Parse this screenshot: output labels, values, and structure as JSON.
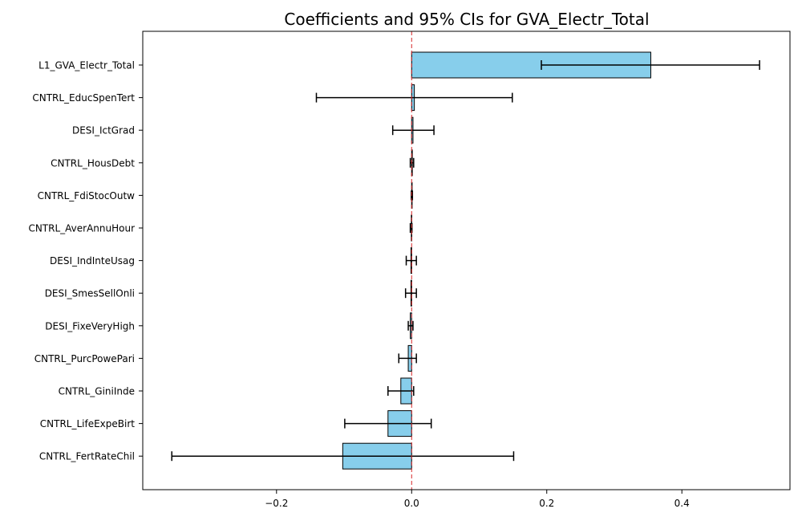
{
  "chart_data": {
    "type": "bar",
    "orientation": "horizontal",
    "title": "Coefficients and 95% CIs for GVA_Electr_Total",
    "xlabel": "",
    "ylabel": "",
    "xlim": [
      -0.398,
      0.56
    ],
    "xticks": [
      -0.2,
      0.0,
      0.2,
      0.4
    ],
    "xtick_labels": [
      "−0.2",
      "0.0",
      "0.2",
      "0.4"
    ],
    "reference_line": {
      "x": 0,
      "style": "dashed",
      "color": "#d62728"
    },
    "grid": false,
    "colors": {
      "bar_fill": "#87ceeb",
      "bar_edge": "#000000",
      "errorbar": "#000000"
    },
    "categories": [
      "L1_GVA_Electr_Total",
      "CNTRL_EducSpenTert",
      "DESI_IctGrad",
      "CNTRL_HousDebt",
      "CNTRL_FdiStocOutw",
      "CNTRL_AverAnnuHour",
      "DESI_IndInteUsag",
      "DESI_SmesSellOnli",
      "DESI_FixeVeryHigh",
      "CNTRL_PurcPowePari",
      "CNTRL_GiniInde",
      "CNTRL_LifeExpeBirt",
      "CNTRL_FertRateChil"
    ],
    "coefficients": [
      0.354,
      0.004,
      0.002,
      0.001,
      0.0005,
      -0.0005,
      -0.001,
      -0.001,
      -0.002,
      -0.005,
      -0.016,
      -0.035,
      -0.102
    ],
    "ci_lower": [
      0.192,
      -0.141,
      -0.028,
      -0.002,
      -0.0005,
      -0.002,
      -0.008,
      -0.009,
      -0.005,
      -0.019,
      -0.035,
      -0.099,
      -0.355
    ],
    "ci_upper": [
      0.515,
      0.149,
      0.033,
      0.003,
      0.0012,
      0.0005,
      0.007,
      0.007,
      0.002,
      0.007,
      0.003,
      0.029,
      0.151
    ]
  }
}
